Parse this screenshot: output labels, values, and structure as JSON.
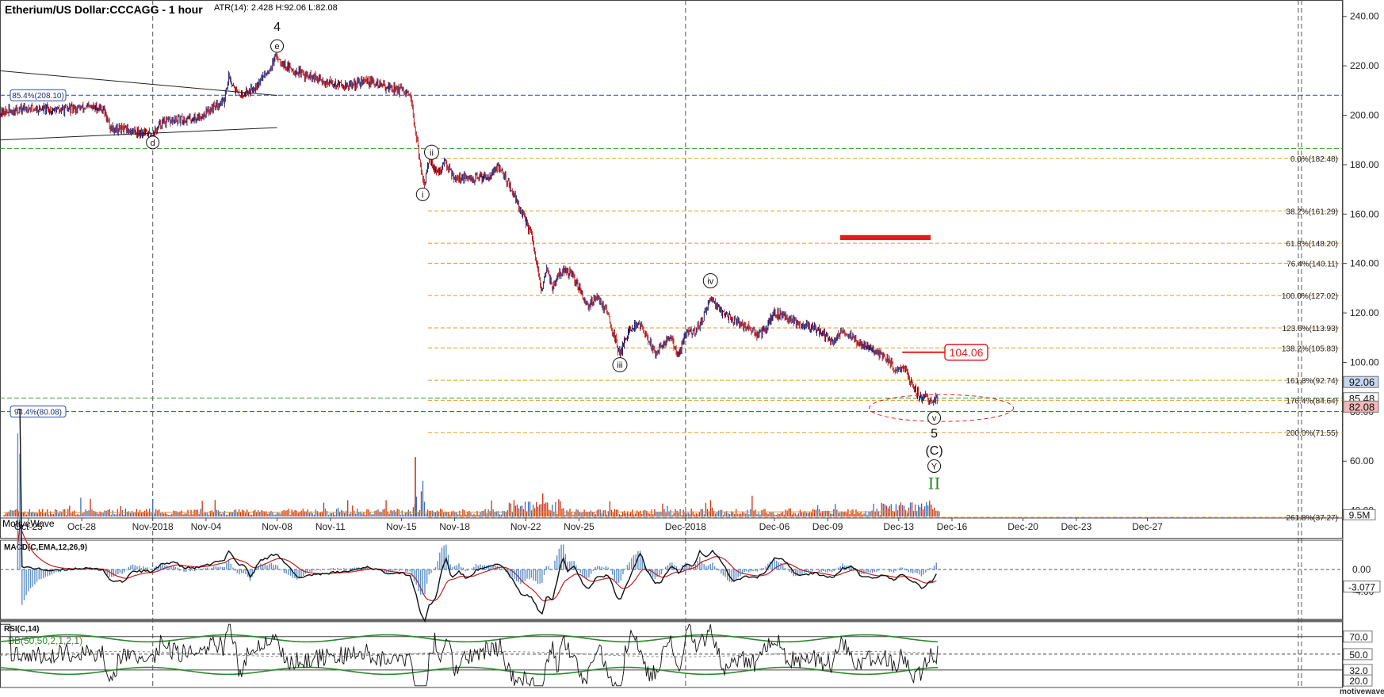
{
  "header": {
    "title": "Etherium/US Dollar:CCCAGG - 1 hour",
    "atr": "ATR(14): 2.428 H:92.06 L:82.08"
  },
  "watermark": "MotiveWave",
  "footer_brand": "motivewave.com",
  "chart_data": {
    "type": "candlestick",
    "ylim": [
      37,
      246
    ],
    "y_ticks": [
      {
        "v": 240,
        "label": "240.00"
      },
      {
        "v": 220,
        "label": "220.00"
      },
      {
        "v": 200,
        "label": "200.00"
      },
      {
        "v": 180,
        "label": "180.00"
      },
      {
        "v": 160,
        "label": "160.00"
      },
      {
        "v": 140,
        "label": "140.00"
      },
      {
        "v": 120,
        "label": "120.00"
      },
      {
        "v": 100,
        "label": "100.00"
      },
      {
        "v": 80,
        "label": "80.00"
      },
      {
        "v": 60,
        "label": "60.00"
      },
      {
        "v": 40,
        "label": "40.00"
      }
    ],
    "x_ticks": [
      "Oct-25",
      "Oct-28",
      "Nov-2018",
      "Nov-04",
      "Nov-08",
      "Nov-11",
      "Nov-15",
      "Nov-18",
      "Nov-22",
      "Nov-25",
      "Dec-2018",
      "Dec-06",
      "Dec-09",
      "Dec-13",
      "Dec-16",
      "Dec-20",
      "Dec-23",
      "Dec-27"
    ],
    "x_tick_days": [
      0,
      3,
      7,
      10,
      14,
      17,
      21,
      24,
      28,
      31,
      37,
      42,
      45,
      49,
      52,
      56,
      59,
      63
    ],
    "x_dashed_days": [
      7,
      37
    ],
    "x_far_dashed": 71.5,
    "day_range": [
      -1.6,
      73.2
    ],
    "price_path": [
      [
        -1.6,
        201
      ],
      [
        0,
        203
      ],
      [
        1.5,
        202
      ],
      [
        3,
        203
      ],
      [
        4.2,
        203
      ],
      [
        4.6,
        195
      ],
      [
        5.5,
        194
      ],
      [
        6.5,
        193
      ],
      [
        7,
        192
      ],
      [
        7.5,
        197
      ],
      [
        8.5,
        198
      ],
      [
        9.5,
        199
      ],
      [
        10,
        201
      ],
      [
        10.5,
        204
      ],
      [
        11,
        206
      ],
      [
        11.3,
        216
      ],
      [
        11.8,
        208
      ],
      [
        12.5,
        210
      ],
      [
        13,
        214
      ],
      [
        13.5,
        218
      ],
      [
        14,
        224
      ],
      [
        14.5,
        220
      ],
      [
        15,
        218
      ],
      [
        16,
        215
      ],
      [
        17,
        213
      ],
      [
        18,
        212
      ],
      [
        19,
        214
      ],
      [
        20,
        212
      ],
      [
        21,
        210
      ],
      [
        21.5,
        207
      ],
      [
        21.8,
        194
      ],
      [
        22,
        182
      ],
      [
        22.3,
        172
      ],
      [
        22.6,
        183
      ],
      [
        23,
        176
      ],
      [
        23.5,
        181
      ],
      [
        24,
        175
      ],
      [
        25,
        174
      ],
      [
        26,
        176
      ],
      [
        26.5,
        179
      ],
      [
        27,
        173
      ],
      [
        27.8,
        160
      ],
      [
        28.3,
        152
      ],
      [
        28.6,
        140
      ],
      [
        28.9,
        128
      ],
      [
        29.2,
        139
      ],
      [
        29.5,
        130
      ],
      [
        30,
        137
      ],
      [
        30.5,
        136
      ],
      [
        31,
        130
      ],
      [
        31.5,
        123
      ],
      [
        32,
        127
      ],
      [
        32.6,
        120
      ],
      [
        33,
        110
      ],
      [
        33.3,
        103
      ],
      [
        33.6,
        110
      ],
      [
        34,
        114
      ],
      [
        34.4,
        116
      ],
      [
        34.8,
        110
      ],
      [
        35.3,
        104
      ],
      [
        35.8,
        108
      ],
      [
        36.2,
        110
      ],
      [
        36.6,
        102
      ],
      [
        37,
        112
      ],
      [
        37.6,
        113
      ],
      [
        38,
        118
      ],
      [
        38.5,
        126
      ],
      [
        39,
        121
      ],
      [
        39.5,
        118
      ],
      [
        40,
        116
      ],
      [
        40.5,
        114
      ],
      [
        41,
        111
      ],
      [
        41.5,
        113
      ],
      [
        42,
        120
      ],
      [
        42.5,
        119
      ],
      [
        43,
        117
      ],
      [
        43.8,
        115
      ],
      [
        44.3,
        114
      ],
      [
        44.8,
        111
      ],
      [
        45.3,
        108
      ],
      [
        45.8,
        113
      ],
      [
        46.3,
        111
      ],
      [
        46.8,
        107
      ],
      [
        47.3,
        107
      ],
      [
        47.8,
        103
      ],
      [
        48.3,
        102
      ],
      [
        48.8,
        97
      ],
      [
        49.2,
        99
      ],
      [
        49.7,
        92
      ],
      [
        50,
        88
      ],
      [
        50.3,
        85
      ],
      [
        50.6,
        86
      ],
      [
        50.9,
        84
      ],
      [
        51.2,
        86
      ]
    ],
    "fib_levels": [
      {
        "v": 182.48,
        "label": "0.0%(182.48)"
      },
      {
        "v": 161.29,
        "label": "38.2%(161.29)"
      },
      {
        "v": 148.2,
        "label": "61.8%(148.20)"
      },
      {
        "v": 140.11,
        "label": "76.4%(140.11)"
      },
      {
        "v": 127.02,
        "label": "100.0%(127.02)"
      },
      {
        "v": 113.93,
        "label": "123.6%(113.93)"
      },
      {
        "v": 105.83,
        "label": "138.2%(105.83)"
      },
      {
        "v": 92.74,
        "label": "161.8%(92.74)"
      },
      {
        "v": 84.64,
        "label": "176.4%(84.64)"
      },
      {
        "v": 71.55,
        "label": "200.0%(71.55)"
      },
      {
        "v": 37.27,
        "label": "261.8%(37.27)"
      }
    ],
    "blue_levels": [
      {
        "v": 208.1,
        "label": "85.4%(208.10)"
      },
      {
        "v": 80.08,
        "label": "94.4%(80.08)"
      }
    ],
    "green_levels": [
      186.5,
      85.48
    ],
    "price_badges": [
      {
        "v": 92.06,
        "label": "92.06",
        "color": "#c5d7f0"
      },
      {
        "v": 85.48,
        "label": "85.48",
        "color": "#ffffff"
      },
      {
        "v": 82.08,
        "label": "82.08",
        "color": "#f2b8b8"
      }
    ],
    "volume_badge": "9.5M",
    "annotations": {
      "target_label": "104.06",
      "target_value": 104.06,
      "red_zone": {
        "low": 149.5,
        "high": 151.5,
        "day_from": 45.7,
        "day_to": 50.8
      },
      "wave_labels": [
        {
          "text": "4",
          "day": 14,
          "v": 236,
          "style": "plain"
        },
        {
          "text": "e",
          "day": 14,
          "v": 228,
          "style": "circle"
        },
        {
          "text": "d",
          "day": 7,
          "v": 189,
          "style": "circle"
        },
        {
          "text": "ii",
          "day": 22.7,
          "v": 185,
          "style": "circle"
        },
        {
          "text": "i",
          "day": 22.2,
          "v": 168,
          "style": "circle"
        },
        {
          "text": "iv",
          "day": 38.4,
          "v": 133,
          "style": "circle"
        },
        {
          "text": "iii",
          "day": 33.3,
          "v": 99,
          "style": "circle"
        },
        {
          "text": "v",
          "day": 51,
          "v": 77.5,
          "style": "circle"
        },
        {
          "text": "5",
          "day": 51,
          "v": 71.5,
          "style": "plain"
        },
        {
          "text": "(C)",
          "day": 51,
          "v": 64.5,
          "style": "plain"
        },
        {
          "text": "Y",
          "day": 51,
          "v": 58,
          "style": "circle"
        },
        {
          "text": "II",
          "day": 51,
          "v": 51,
          "style": "green"
        }
      ]
    },
    "macd": {
      "title": "MACD(C,EMA,12,26,9)",
      "ticks": [
        {
          "v": 0,
          "label": "0.00"
        },
        {
          "v": -4,
          "label": "-4.00"
        }
      ],
      "current": {
        "v": -3.077,
        "label": "-3.077"
      },
      "ylim": [
        -9,
        5
      ]
    },
    "rsi": {
      "title": "RSI(C,14)",
      "bb_label": "BB(50,50,2,1,2,1)",
      "ticks": [
        {
          "v": 70,
          "label": "70.0"
        },
        {
          "v": 50,
          "label": "50.0"
        },
        {
          "v": 32,
          "label": "32.0"
        },
        {
          "v": 20,
          "label": "20.0"
        }
      ],
      "ylim": [
        12,
        86
      ]
    }
  }
}
